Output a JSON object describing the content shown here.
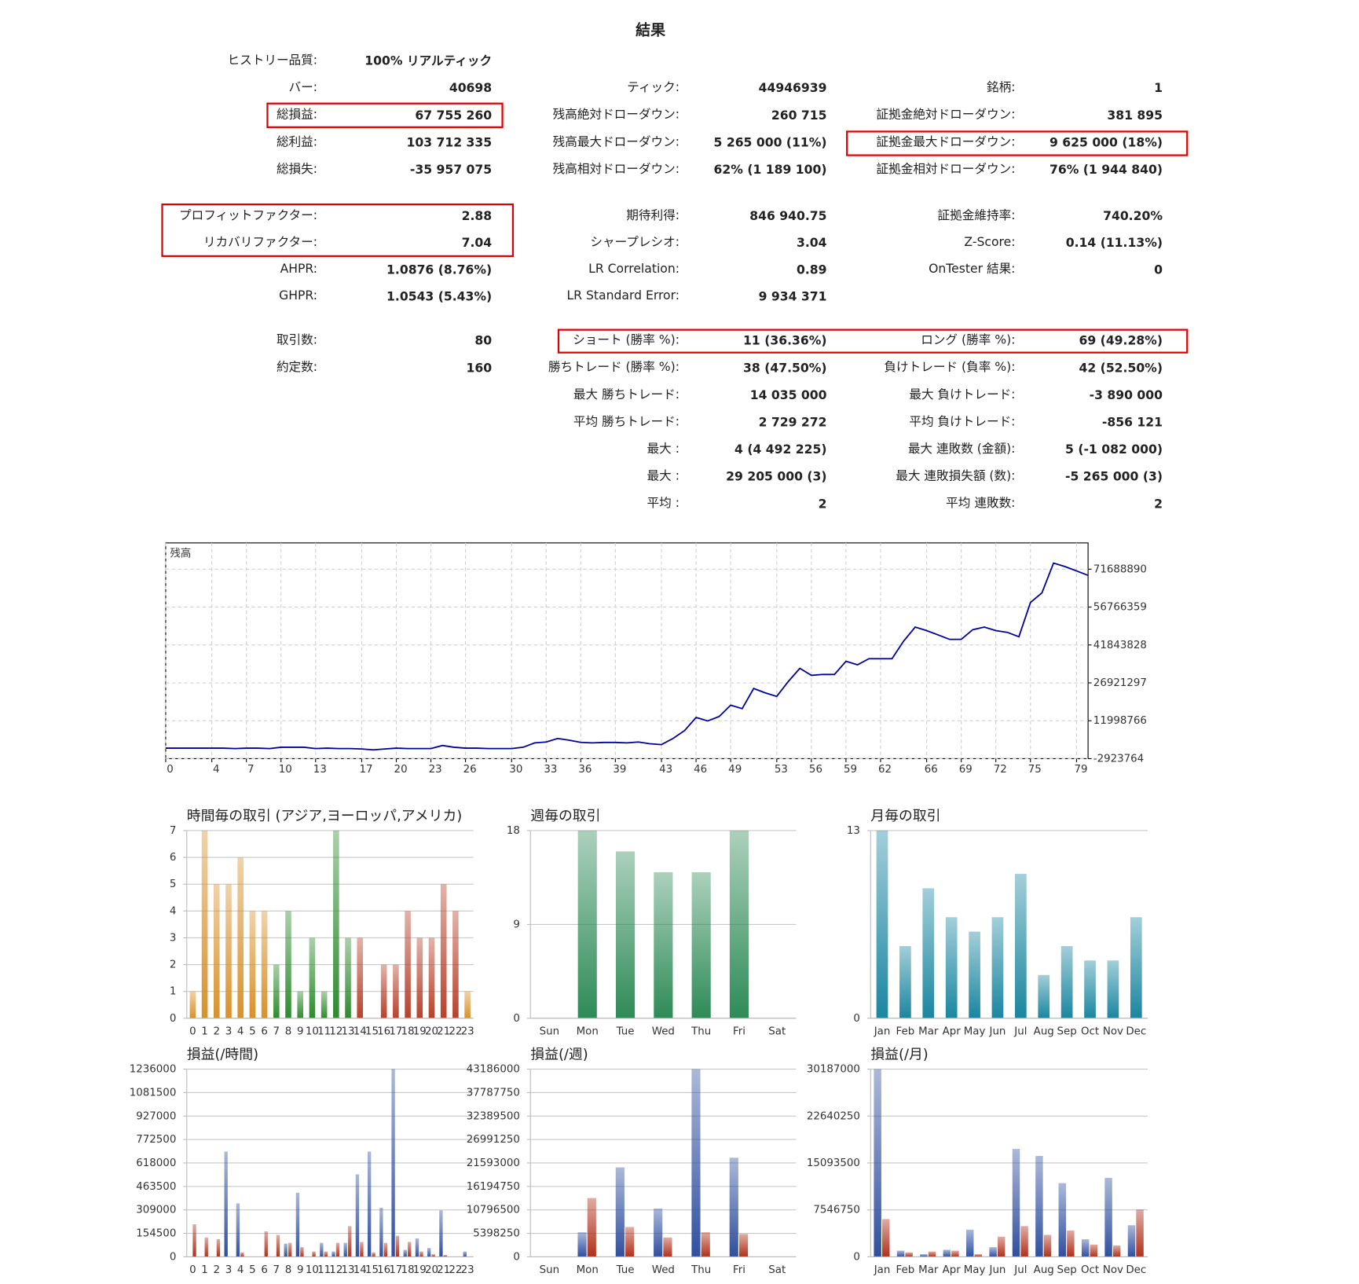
{
  "title": "結果",
  "stats": [
    [
      [
        {
          "label": "ヒストリー品質:",
          "value": "100% リアルティック"
        },
        {
          "label": "バー:",
          "value": "40698"
        },
        {
          "label": "総損益:",
          "value": "67 755 260"
        },
        {
          "label": "総利益:",
          "value": "103 712 335"
        },
        {
          "label": "総損失:",
          "value": "-35 957 075"
        }
      ],
      [
        {
          "label": "プロフィットファクター:",
          "value": "2.88"
        },
        {
          "label": "リカバリファクター:",
          "value": "7.04"
        },
        {
          "label": "AHPR:",
          "value": "1.0876 (8.76%)"
        },
        {
          "label": "GHPR:",
          "value": "1.0543 (5.43%)"
        }
      ],
      [
        {
          "label": "取引数:",
          "value": "80"
        },
        {
          "label": "約定数:",
          "value": "160"
        }
      ]
    ],
    [
      [
        {
          "label": "ティック:",
          "value": "44946939"
        },
        {
          "label": "残高絶対ドローダウン:",
          "value": "260 715"
        },
        {
          "label": "残高最大ドローダウン:",
          "value": "5 265 000 (11%)"
        },
        {
          "label": "残高相対ドローダウン:",
          "value": "62% (1 189 100)"
        }
      ],
      [
        {
          "label": "期待利得:",
          "value": "846 940.75"
        },
        {
          "label": "シャープレシオ:",
          "value": "3.04"
        },
        {
          "label": "LR Correlation:",
          "value": "0.89"
        },
        {
          "label": "LR Standard Error:",
          "value": "9 934 371"
        }
      ],
      [
        {
          "label": "ショート (勝率 %):",
          "value": "11 (36.36%)"
        },
        {
          "label": "勝ちトレード (勝率 %):",
          "value": "38 (47.50%)"
        },
        {
          "label": "最大 勝ちトレード:",
          "value": "14 035 000"
        },
        {
          "label": "平均 勝ちトレード:",
          "value": "2 729 272"
        },
        {
          "label": "最大 :",
          "value": "4 (4 492 225)"
        },
        {
          "label": "最大 :",
          "value": "29 205 000 (3)"
        },
        {
          "label": "平均 :",
          "value": "2"
        }
      ]
    ],
    [
      [
        {
          "label": "銘柄:",
          "value": "1"
        },
        {
          "label": "証拠金絶対ドローダウン:",
          "value": "381 895"
        },
        {
          "label": "証拠金最大ドローダウン:",
          "value": "9 625 000 (18%)"
        },
        {
          "label": "証拠金相対ドローダウン:",
          "value": "76% (1 944 840)"
        }
      ],
      [
        {
          "label": "証拠金維持率:",
          "value": "740.20%"
        },
        {
          "label": "Z-Score:",
          "value": "0.14 (11.13%)"
        },
        {
          "label": "OnTester 結果:",
          "value": "0"
        }
      ],
      [
        {
          "label": "ロング (勝率 %):",
          "value": "69 (49.28%)"
        },
        {
          "label": "負けトレード (負率 %):",
          "value": "42 (52.50%)"
        },
        {
          "label": "最大 負けトレード:",
          "value": "-3 890 000"
        },
        {
          "label": "平均 負けトレード:",
          "value": "-856 121"
        },
        {
          "label": "最大 連敗数 (金額):",
          "value": "5 (-1 082 000)"
        },
        {
          "label": "最大 連敗損失額 (数):",
          "value": "-5 265 000 (3)"
        },
        {
          "label": "平均 連敗数:",
          "value": "2"
        }
      ]
    ]
  ],
  "chart_data": [
    {
      "type": "line",
      "title": "残高",
      "color": "#00009c",
      "grid": true,
      "yaxis_position": "right",
      "x": [
        0,
        1,
        2,
        3,
        4,
        5,
        6,
        7,
        8,
        9,
        10,
        11,
        12,
        13,
        14,
        15,
        16,
        17,
        18,
        19,
        20,
        21,
        22,
        23,
        24,
        25,
        26,
        27,
        28,
        29,
        30,
        31,
        32,
        33,
        34,
        35,
        36,
        37,
        38,
        39,
        40,
        41,
        42,
        43,
        44,
        45,
        46,
        47,
        48,
        49,
        50,
        51,
        52,
        53,
        54,
        55,
        56,
        57,
        58,
        59,
        60,
        61,
        62,
        63,
        64,
        65,
        66,
        67,
        68,
        69,
        70,
        71,
        72,
        73,
        74,
        75,
        76,
        77,
        78,
        79,
        80
      ],
      "values": [
        1220000,
        1220000,
        1220000,
        1220000,
        1220000,
        1220000,
        1050000,
        1220000,
        1220000,
        1050000,
        1570000,
        1570000,
        1570000,
        1050000,
        1220000,
        1050000,
        1050000,
        880000,
        530000,
        880000,
        1220000,
        1050000,
        1050000,
        1050000,
        2260000,
        1570000,
        1220000,
        1220000,
        1050000,
        1050000,
        1050000,
        1570000,
        3290000,
        3640000,
        5020000,
        4330000,
        3470000,
        3290000,
        3470000,
        3470000,
        3290000,
        3640000,
        2950000,
        2600000,
        5020000,
        8130000,
        13310000,
        11930000,
        13660000,
        18150000,
        16770000,
        24710000,
        22980000,
        21600000,
        27470000,
        32660000,
        29890000,
        30240000,
        30240000,
        35420000,
        34040000,
        36460000,
        36460000,
        36460000,
        43370000,
        48890000,
        47510000,
        45790000,
        44060000,
        44060000,
        47860000,
        48890000,
        47510000,
        46820000,
        45100000,
        58580000,
        62360000,
        74110000,
        72730000,
        71010000,
        69270000
      ],
      "xlim": [
        0,
        80
      ],
      "xticks": [
        0,
        4,
        7,
        10,
        13,
        17,
        20,
        23,
        26,
        30,
        33,
        36,
        39,
        43,
        46,
        49,
        53,
        56,
        59,
        62,
        66,
        69,
        72,
        75,
        79
      ],
      "ylim": [
        -2923764,
        82046000
      ],
      "yticks": [
        -2923764,
        11998766,
        26921297,
        41843828,
        56766359,
        71688890
      ]
    },
    {
      "type": "bar",
      "title": "時間毎の取引 (アジア,ヨーロッパ,アメリカ)",
      "grid": true,
      "categories": [
        "0",
        "1",
        "2",
        "3",
        "4",
        "5",
        "6",
        "7",
        "8",
        "9",
        "10",
        "11",
        "12",
        "13",
        "14",
        "15",
        "16",
        "17",
        "18",
        "19",
        "20",
        "21",
        "22",
        "23"
      ],
      "values": [
        1,
        7,
        5,
        5,
        6,
        4,
        4,
        2,
        4,
        1,
        3,
        1,
        7,
        3,
        3,
        0,
        2,
        2,
        4,
        3,
        3,
        5,
        4,
        1
      ],
      "colors": [
        "#d9912a",
        "#d9912a",
        "#d9912a",
        "#d9912a",
        "#d9912a",
        "#d9912a",
        "#d9912a",
        "#2e8b2e",
        "#2e8b2e",
        "#2e8b2e",
        "#2e8b2e",
        "#2e8b2e",
        "#2e8b2e",
        "#2e8b2e",
        "#b8412a",
        "#b8412a",
        "#b8412a",
        "#b8412a",
        "#b8412a",
        "#b8412a",
        "#b8412a",
        "#b8412a",
        "#b8412a",
        "#d9912a"
      ],
      "ylim": [
        0,
        7
      ],
      "yticks": [
        0,
        1,
        2,
        3,
        4,
        5,
        6,
        7
      ]
    },
    {
      "type": "bar",
      "title": "週毎の取引",
      "grid": true,
      "color": "#2e8b57",
      "categories": [
        "Sun",
        "Mon",
        "Tue",
        "Wed",
        "Thu",
        "Fri",
        "Sat"
      ],
      "values": [
        0,
        18,
        16,
        14,
        14,
        18,
        0
      ],
      "ylim": [
        0,
        18
      ],
      "yticks": [
        0,
        9,
        18
      ]
    },
    {
      "type": "bar",
      "title": "月毎の取引",
      "grid": true,
      "color": "#1a86a0",
      "categories": [
        "Jan",
        "Feb",
        "Mar",
        "Apr",
        "May",
        "Jun",
        "Jul",
        "Aug",
        "Sep",
        "Oct",
        "Nov",
        "Dec"
      ],
      "values": [
        13,
        5,
        9,
        7,
        6,
        7,
        10,
        3,
        5,
        4,
        4,
        7
      ],
      "ylim": [
        0,
        13
      ],
      "yticks": [
        0,
        13
      ]
    },
    {
      "type": "grouped_bar",
      "title": "損益(/時間)",
      "grid": true,
      "categories": [
        "0",
        "1",
        "2",
        "3",
        "4",
        "5",
        "6",
        "7",
        "8",
        "9",
        "10",
        "11",
        "12",
        "13",
        "14",
        "15",
        "16",
        "17",
        "18",
        "19",
        "20",
        "21",
        "22",
        "23"
      ],
      "series": [
        {
          "color": "#2f4f9f",
          "values": [
            0,
            0,
            0,
            693000,
            352000,
            0,
            0,
            0,
            87000,
            422000,
            0,
            92000,
            35000,
            92000,
            543000,
            693000,
            323000,
            1236000,
            46000,
            121000,
            58000,
            306000,
            0,
            35000
          ]
        },
        {
          "color": "#b0301a",
          "values": [
            214000,
            127000,
            116000,
            0,
            29000,
            0,
            168000,
            144000,
            92000,
            64000,
            35000,
            35000,
            92000,
            202000,
            98000,
            29000,
            92000,
            139000,
            98000,
            35000,
            17000,
            12000,
            0,
            0
          ]
        }
      ],
      "ylim": [
        0,
        1236000
      ],
      "yticks": [
        0,
        154500,
        309000,
        463500,
        618000,
        772500,
        927000,
        1081500,
        1236000
      ]
    },
    {
      "type": "grouped_bar",
      "title": "損益(/週)",
      "grid": true,
      "categories": [
        "Sun",
        "Mon",
        "Tue",
        "Wed",
        "Thu",
        "Fri",
        "Sat"
      ],
      "series": [
        {
          "color": "#2f4f9f",
          "values": [
            0,
            5650000,
            20580000,
            11100000,
            43186000,
            22800000,
            0
          ]
        },
        {
          "color": "#b0301a",
          "values": [
            0,
            13520000,
            6860000,
            4440000,
            5650000,
            5250000,
            0
          ]
        }
      ],
      "ylim": [
        0,
        43186000
      ],
      "yticks": [
        0,
        5398250,
        10796500,
        16194750,
        21593000,
        26991250,
        32389500,
        37787750,
        43186000
      ]
    },
    {
      "type": "grouped_bar",
      "title": "損益(/月)",
      "grid": true,
      "categories": [
        "Jan",
        "Feb",
        "Mar",
        "Apr",
        "May",
        "Jun",
        "Jul",
        "Aug",
        "Sep",
        "Oct",
        "Nov",
        "Dec"
      ],
      "series": [
        {
          "color": "#2f4f9f",
          "values": [
            30187000,
            990000,
            420000,
            1130000,
            4370000,
            1550000,
            17350000,
            16220000,
            11850000,
            2820000,
            12700000,
            5080000
          ]
        },
        {
          "color": "#b0301a",
          "values": [
            6070000,
            710000,
            850000,
            990000,
            420000,
            3240000,
            4940000,
            3530000,
            4230000,
            1970000,
            1830000,
            7620000
          ]
        }
      ],
      "ylim": [
        0,
        30187000
      ],
      "yticks": [
        0,
        7546750,
        15093500,
        22640250,
        30187000
      ]
    }
  ]
}
